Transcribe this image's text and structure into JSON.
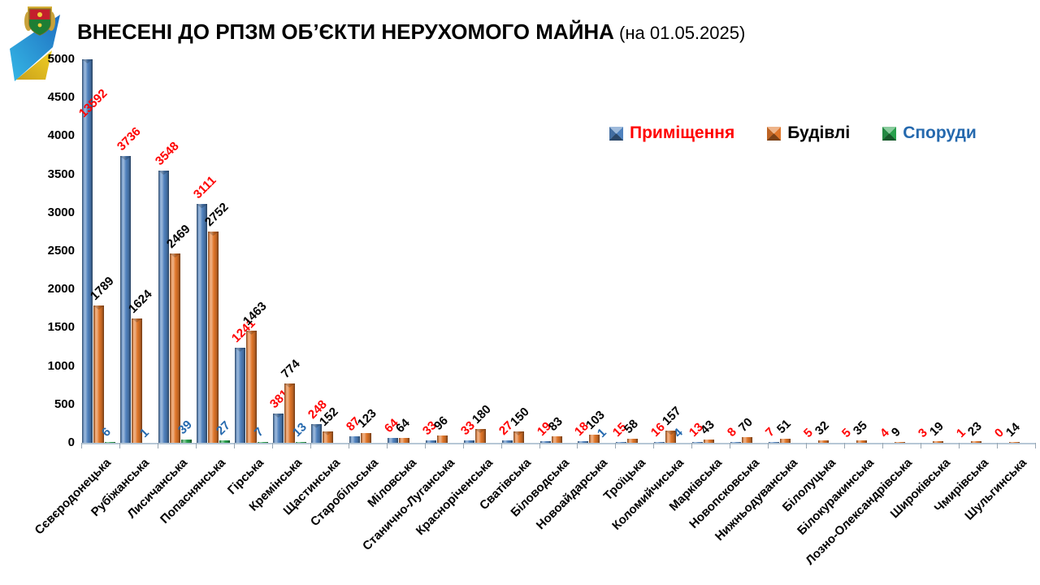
{
  "header": {
    "title": "ВНЕСЕНІ ДО РПЗМ ОБ’ЄКТИ НЕРУХОМОГО МАЙНА",
    "subtitle": " (на 01.05.2025)"
  },
  "legend": [
    {
      "label": "Приміщення",
      "marker_color": "#4f81bd",
      "text_color": "#ff0000"
    },
    {
      "label": "Будівлі",
      "marker_color": "#e0762a",
      "text_color": "#000000"
    },
    {
      "label": "Споруди",
      "marker_color": "#28a04c",
      "text_color": "#2569ae"
    }
  ],
  "icons": [
    {
      "name": "luhansk-coat-of-arms",
      "colors": [
        "#c41f2c",
        "#1e7e34",
        "#d4af37"
      ]
    },
    {
      "name": "blue-yellow-ribbon",
      "colors": [
        "#35b8e6",
        "#1f6fc0",
        "#e8c51f"
      ]
    }
  ],
  "chart_data": {
    "type": "bar",
    "title": "ВНЕСЕНІ ДО РПЗМ ОБ’ЄКТИ НЕРУХОМОГО МАЙНА (на 01.05.2025)",
    "categories": [
      "Сєвєродонецька",
      "Рубіжанська",
      "Лисичанська",
      "Попаснянська",
      "Гірська",
      "Кремінська",
      "Щастинська",
      "Старобільська",
      "Міловська",
      "Станично-Луганська",
      "Красноріченська",
      "Сватівська",
      "Біловодська",
      "Новоайдарська",
      "Троїцька",
      "Коломийчиська",
      "Марківська",
      "Новопсковська",
      "Нижньодуванська",
      "Білолуцька",
      "Білокуракинська",
      "Лозно-Олександрівська",
      "Широківська",
      "Чмирівська",
      "Шульгинська"
    ],
    "series": [
      {
        "name": "Приміщення",
        "color": "#4f81bd",
        "label_color": "#ff0000",
        "values": [
          13592,
          3736,
          3548,
          3111,
          1241,
          381,
          248,
          87,
          64,
          33,
          33,
          27,
          19,
          18,
          15,
          16,
          13,
          8,
          7,
          5,
          5,
          4,
          3,
          1,
          0
        ]
      },
      {
        "name": "Будівлі",
        "color": "#e0762a",
        "label_color": "#000000",
        "values": [
          1789,
          1624,
          2469,
          2752,
          1463,
          774,
          152,
          123,
          64,
          96,
          180,
          150,
          83,
          103,
          58,
          157,
          43,
          70,
          51,
          32,
          35,
          9,
          19,
          23,
          14
        ]
      },
      {
        "name": "Споруди",
        "color": "#28a04c",
        "label_color": "#2569ae",
        "values": [
          6,
          1,
          39,
          27,
          7,
          13,
          null,
          null,
          null,
          null,
          null,
          null,
          null,
          1,
          null,
          4,
          null,
          null,
          null,
          null,
          null,
          null,
          null,
          null,
          null
        ]
      }
    ],
    "ylim": [
      0,
      5000
    ],
    "ytick_step": 500,
    "grid": false,
    "legend_position": "top-right",
    "note": "first bar (13592) clipped at axis max 5000"
  }
}
